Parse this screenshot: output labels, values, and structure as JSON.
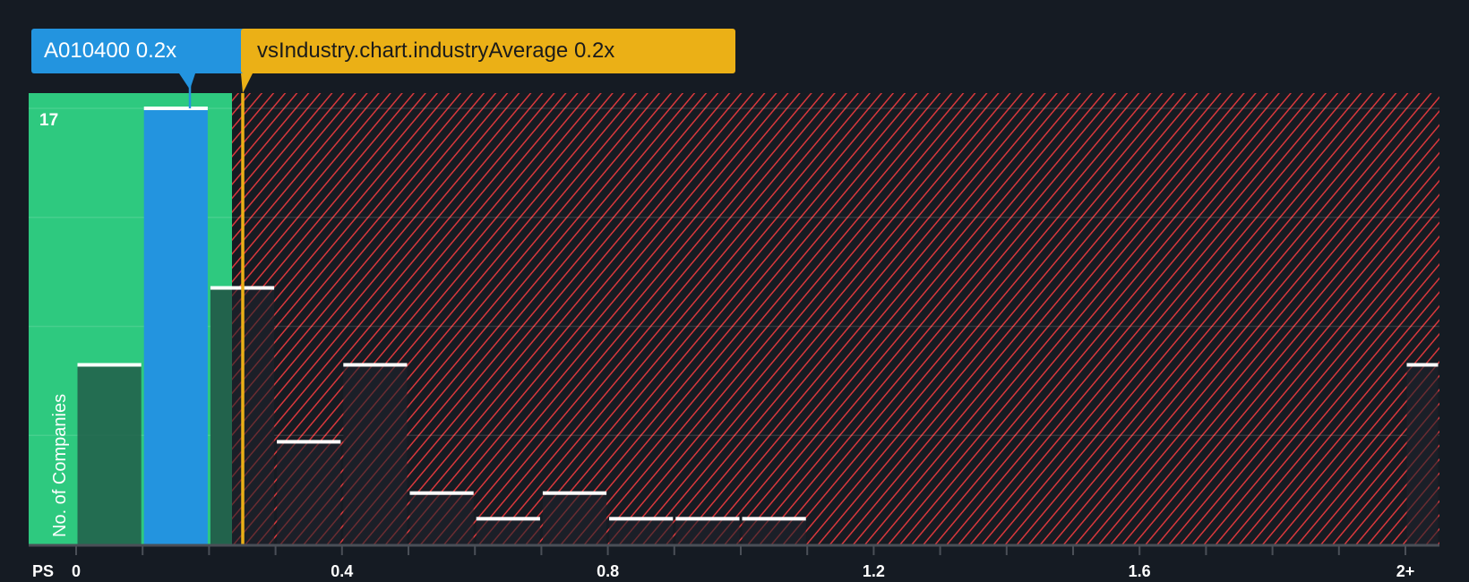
{
  "chart_data": {
    "type": "bar",
    "title": "",
    "xlabel": "PS",
    "ylabel": "No. of Companies",
    "x_tick_labels": [
      "0",
      "0.4",
      "0.8",
      "1.2",
      "1.6",
      "2+"
    ],
    "categories": [
      "0-0.1",
      "0.1-0.2",
      "0.2-0.3",
      "0.3-0.4",
      "0.4-0.5",
      "0.5-0.6",
      "0.6-0.7",
      "0.7-0.8",
      "0.8-0.9",
      "0.9-1.0",
      "1.0-1.1",
      "2+"
    ],
    "values": [
      7,
      17,
      10,
      4,
      7,
      2,
      1,
      2,
      1,
      1,
      1,
      7
    ],
    "ylim": [
      0,
      17
    ],
    "y_max_label": "17",
    "highlight_bin": "0.1-0.2",
    "company": {
      "ticker": "A010400",
      "value": "0.2x",
      "label": "A010400 0.2x"
    },
    "industry_average": {
      "key": "vsIndustry.chart.industryAverage",
      "value": "0.2x",
      "label": "vsIndustry.chart.industryAverage 0.2x"
    },
    "grid": true,
    "legend": "none"
  },
  "colors": {
    "background": "#151b23",
    "undervalued_zone": "#2ec97f",
    "company_bar": "#2394df",
    "industry_line": "#ebb016",
    "overvalued_hatch": "#d9383c",
    "bar_cap": "#ffffff"
  }
}
